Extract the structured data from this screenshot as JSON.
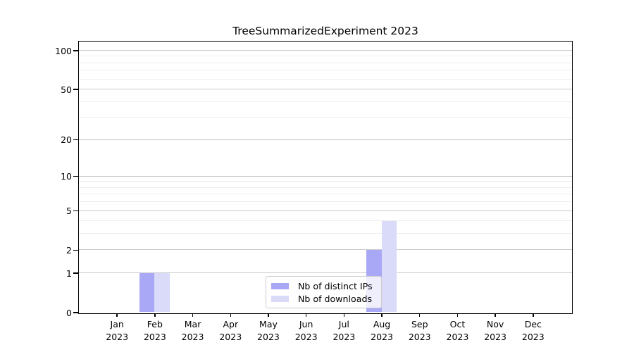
{
  "chart_data": {
    "type": "bar",
    "title": "TreeSummarizedExperiment 2023",
    "xlabel": "",
    "ylabel": "",
    "categories": [
      "Jan 2023",
      "Feb 2023",
      "Mar 2023",
      "Apr 2023",
      "May 2023",
      "Jun 2023",
      "Jul 2023",
      "Aug 2023",
      "Sep 2023",
      "Oct 2023",
      "Nov 2023",
      "Dec 2023"
    ],
    "series": [
      {
        "name": "Nb of distinct IPs",
        "color": "#a8a8f6",
        "values": [
          0,
          1,
          0,
          0,
          0,
          0,
          0,
          2,
          0,
          0,
          0,
          0
        ]
      },
      {
        "name": "Nb of downloads",
        "color": "#dadaf9",
        "values": [
          0,
          1,
          0,
          0,
          0,
          0,
          0,
          4,
          0,
          0,
          0,
          0
        ]
      }
    ],
    "yscale": "log1p",
    "ylim": [
      0,
      100
    ],
    "yticks": [
      0,
      1,
      2,
      5,
      10,
      20,
      50,
      100
    ],
    "minor_yticks": [
      3,
      4,
      6,
      7,
      8,
      9,
      30,
      40,
      60,
      70,
      80,
      90
    ],
    "grid": true,
    "legend_position": "inside-bottom-center"
  },
  "colors": {
    "background": "#ffffff",
    "spine": "#000000",
    "major_grid": "#c9c9c9",
    "minor_grid": "#ededed",
    "legend_border": "#cccccc",
    "text": "#000000"
  }
}
